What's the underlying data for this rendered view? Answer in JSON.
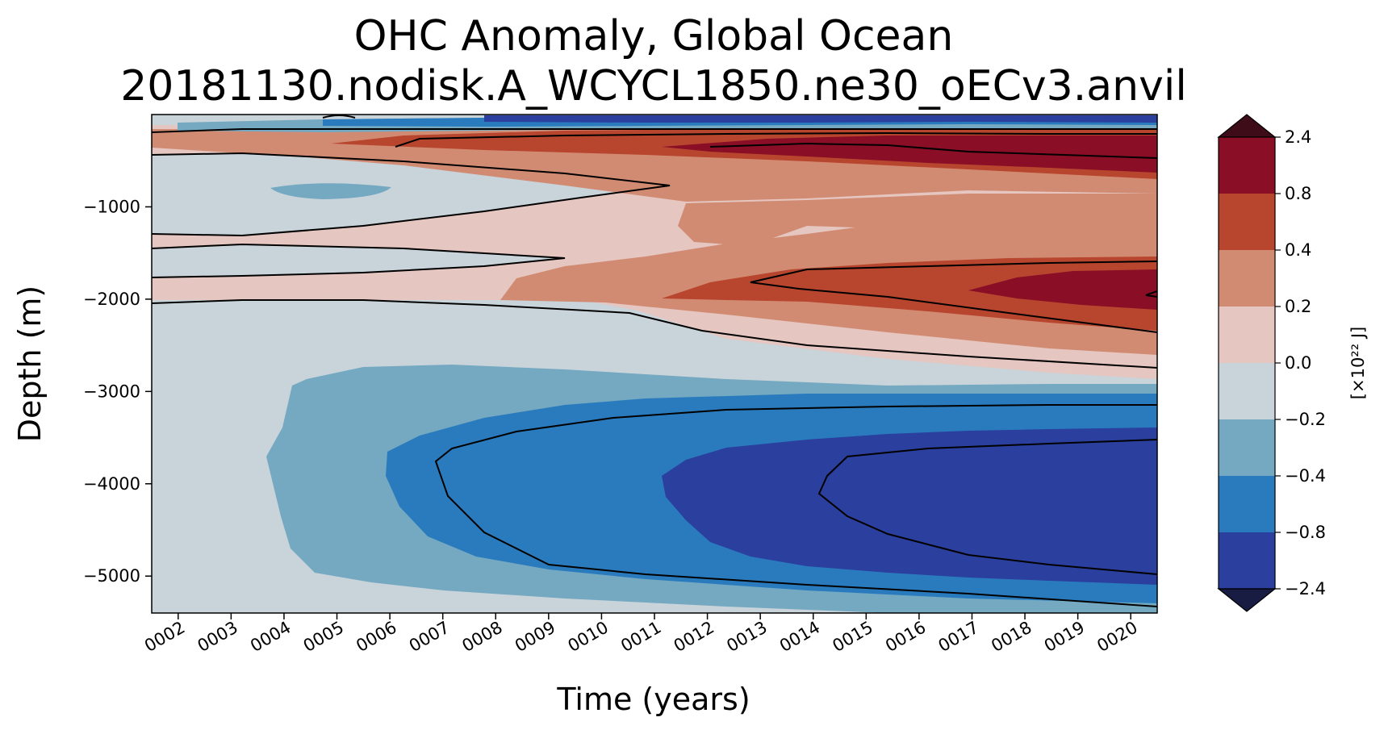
{
  "chart_data": {
    "type": "heatmap",
    "title": "OHC Anomaly, Global Ocean",
    "subtitle": "20181130.nodisk.A_WCYCL1850.ne30_oECv3.anvil",
    "xlabel": "Time (years)",
    "ylabel": "Depth (m)",
    "x_ticks": [
      "0002",
      "0003",
      "0004",
      "0005",
      "0006",
      "0007",
      "0008",
      "0009",
      "0010",
      "0011",
      "0012",
      "0013",
      "0014",
      "0015",
      "0016",
      "0017",
      "0018",
      "0019",
      "0020"
    ],
    "y_ticks": [
      -1000,
      -2000,
      -3000,
      -4000,
      -5000
    ],
    "y_tick_labels": [
      "−1000",
      "−2000",
      "−3000",
      "−4000",
      "−5000"
    ],
    "xlim": [
      1.5,
      20.5
    ],
    "ylim": [
      -5400,
      0
    ],
    "colorbar": {
      "label": "[×10²² J]",
      "levels": [
        -2.4,
        -0.8,
        -0.4,
        -0.2,
        0.0,
        0.2,
        0.4,
        0.8,
        2.4
      ],
      "level_labels": [
        "−2.4",
        "−0.8",
        "−0.4",
        "−0.2",
        "0.0",
        "0.2",
        "0.4",
        "0.8",
        "2.4"
      ],
      "colors": [
        "#2a3f9e",
        "#2a7bbd",
        "#74a9c1",
        "#c9d3da",
        "#e5c6c0",
        "#d28b73",
        "#b8452e",
        "#890e26"
      ],
      "extend_low_color": "#181c43",
      "extend_high_color": "#3e0c18"
    },
    "contour_levels": [
      -0.8,
      -0.4,
      0.0,
      0.4,
      0.8
    ],
    "features": [
      {
        "name": "near-surface band",
        "depth_range": [
          -300,
          0
        ],
        "pattern": "negative (-0.8 to -2.4) in top ~100 m, strong positive (0.4 to >0.8) from ~150-700 m growing after year 0005"
      },
      {
        "name": "mid-depth warm tongue",
        "depth_range": [
          -2300,
          -1500
        ],
        "peak_value": 0.8,
        "years": "0010-0020"
      },
      {
        "name": "abyssal cooling",
        "depth_range": [
          -5300,
          -2700
        ],
        "min_value": -2.4,
        "years": "0004-0020",
        "core_depth": -4100
      }
    ]
  }
}
